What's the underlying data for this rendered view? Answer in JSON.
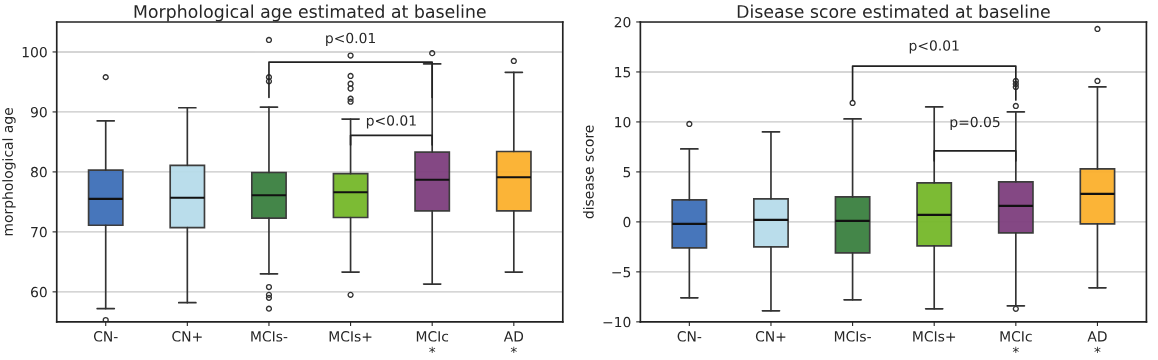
{
  "chart_data": [
    {
      "type": "box",
      "title": "Morphological age estimated at baseline",
      "ylabel": "morphological age",
      "categories": [
        "CN-",
        "CN+",
        "MCIs-",
        "MCIs+",
        "MCIc\n*",
        "AD\n*"
      ],
      "colors": [
        "#3e6fb8",
        "#b7dcea",
        "#3a8040",
        "#76b82a",
        "#7e3f7e",
        "#fbb02d"
      ],
      "boxes": [
        {
          "low": 57.2,
          "q1": 71.1,
          "median": 75.5,
          "q3": 80.3,
          "high": 88.5,
          "outliers": [
            95.8,
            55.3
          ]
        },
        {
          "low": 58.2,
          "q1": 70.7,
          "median": 75.7,
          "q3": 81.1,
          "high": 90.7
        },
        {
          "low": 63.0,
          "q1": 72.3,
          "median": 76.1,
          "q3": 79.9,
          "high": 90.8,
          "outliers": [
            102.0,
            95.8,
            95.1,
            60.8,
            59.5,
            59.0,
            57.2
          ]
        },
        {
          "low": 63.3,
          "q1": 72.4,
          "median": 76.6,
          "q3": 79.7,
          "high": 88.8,
          "outliers": [
            99.4,
            96.0,
            94.7,
            93.9,
            92.2,
            91.7,
            59.5
          ]
        },
        {
          "low": 61.3,
          "q1": 73.5,
          "median": 78.7,
          "q3": 83.3,
          "high": 98.0,
          "outliers": [
            99.8
          ]
        },
        {
          "low": 63.3,
          "q1": 73.5,
          "median": 79.1,
          "q3": 83.4,
          "high": 96.6,
          "outliers": [
            98.5
          ]
        }
      ],
      "ylim": [
        55,
        105
      ],
      "yticks": [
        60,
        70,
        80,
        90,
        100
      ],
      "grid": "y",
      "annotations": [
        "p<0.01",
        "p<0.01"
      ]
    },
    {
      "type": "box",
      "title": "Disease score estimated at baseline",
      "ylabel": "disease score",
      "categories": [
        "CN-",
        "CN+",
        "MCIs-",
        "MCIs+",
        "MCIc\n*",
        "AD\n*"
      ],
      "colors": [
        "#3e6fb8",
        "#b7dcea",
        "#3a8040",
        "#76b82a",
        "#7e3f7e",
        "#fbb02d"
      ],
      "boxes": [
        {
          "low": -7.6,
          "q1": -2.6,
          "median": -0.2,
          "q3": 2.2,
          "high": 7.3,
          "outliers": [
            9.8
          ]
        },
        {
          "low": -8.9,
          "q1": -2.5,
          "median": 0.2,
          "q3": 2.3,
          "high": 9.0
        },
        {
          "low": -7.8,
          "q1": -3.1,
          "median": 0.1,
          "q3": 2.5,
          "high": 10.3,
          "outliers": [
            11.9
          ]
        },
        {
          "low": -8.7,
          "q1": -2.4,
          "median": 0.7,
          "q3": 3.9,
          "high": 11.5
        },
        {
          "low": -8.4,
          "q1": -1.1,
          "median": 1.6,
          "q3": 4.0,
          "high": 11.0,
          "outliers": [
            14.1,
            13.8,
            13.5,
            11.6,
            -8.7
          ]
        },
        {
          "low": -6.6,
          "q1": -0.2,
          "median": 2.8,
          "q3": 5.3,
          "high": 13.5,
          "outliers": [
            19.3,
            14.1
          ]
        }
      ],
      "ylim": [
        -10,
        20
      ],
      "yticks": [
        -10,
        -5,
        0,
        5,
        10,
        15,
        20
      ],
      "grid": "y",
      "annotations": [
        "p<0.01",
        "p=0.05"
      ]
    }
  ]
}
